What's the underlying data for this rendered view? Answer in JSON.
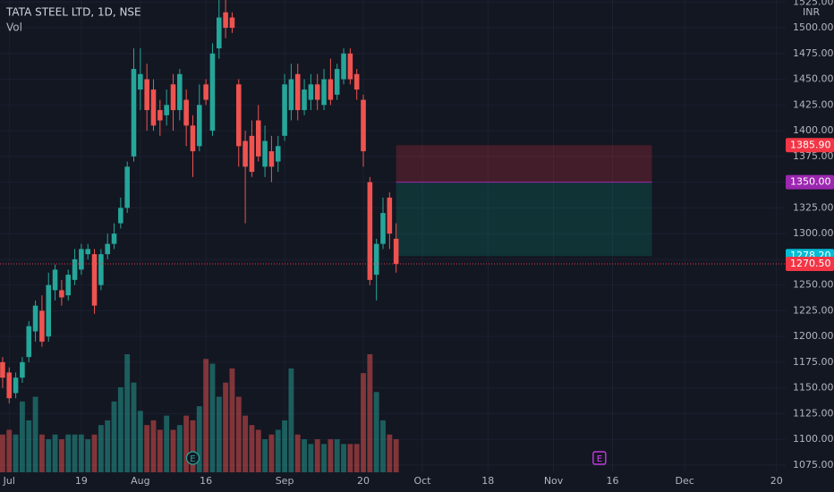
{
  "chart_data": {
    "type": "candlestick",
    "title": "TATA STEEL LTD, 1D, NSE",
    "subtitle": "Vol",
    "currency": "INR",
    "up_color": "#26a69a",
    "down_color": "#ef5350",
    "x": [
      0,
      1,
      2,
      3,
      4,
      5,
      6,
      7,
      8,
      9,
      10,
      11,
      12,
      13,
      14,
      15,
      16,
      17,
      18,
      19,
      20,
      21,
      22,
      23,
      24,
      25,
      26,
      27,
      28,
      29,
      30,
      31,
      32,
      33,
      34,
      35,
      36,
      37,
      38,
      39,
      40,
      41,
      42,
      43,
      44,
      45,
      46,
      47,
      48,
      49,
      50,
      51,
      52,
      53,
      54,
      55,
      56,
      57,
      58,
      59,
      60
    ],
    "open": [
      1175,
      1165,
      1145,
      1160,
      1180,
      1205,
      1225,
      1200,
      1245,
      1245,
      1240,
      1255,
      1265,
      1280,
      1280,
      1250,
      1280,
      1290,
      1310,
      1325,
      1375,
      1440,
      1450,
      1440,
      1420,
      1415,
      1445,
      1420,
      1430,
      1405,
      1385,
      1445,
      1400,
      1480,
      1515,
      1510,
      1445,
      1390,
      1395,
      1410,
      1365,
      1380,
      1370,
      1395,
      1420,
      1455,
      1420,
      1430,
      1445,
      1425,
      1450,
      1435,
      1450,
      1475,
      1455,
      1430,
      1350,
      1260,
      1290,
      1335,
      1295
    ],
    "high": [
      1180,
      1170,
      1165,
      1180,
      1215,
      1235,
      1240,
      1262,
      1270,
      1255,
      1265,
      1285,
      1290,
      1290,
      1285,
      1285,
      1300,
      1310,
      1335,
      1370,
      1480,
      1480,
      1465,
      1450,
      1430,
      1440,
      1455,
      1460,
      1440,
      1415,
      1445,
      1450,
      1485,
      1535,
      1527,
      1515,
      1450,
      1400,
      1410,
      1425,
      1405,
      1395,
      1395,
      1455,
      1465,
      1465,
      1450,
      1455,
      1455,
      1460,
      1470,
      1465,
      1480,
      1480,
      1460,
      1435,
      1355,
      1295,
      1335,
      1340,
      1310
    ],
    "low": [
      1150,
      1135,
      1140,
      1155,
      1175,
      1195,
      1190,
      1195,
      1235,
      1230,
      1235,
      1250,
      1260,
      1275,
      1222,
      1245,
      1275,
      1285,
      1305,
      1320,
      1370,
      1420,
      1400,
      1400,
      1395,
      1405,
      1400,
      1410,
      1385,
      1355,
      1380,
      1425,
      1395,
      1470,
      1490,
      1495,
      1365,
      1310,
      1355,
      1370,
      1355,
      1350,
      1360,
      1390,
      1410,
      1410,
      1415,
      1420,
      1420,
      1420,
      1425,
      1430,
      1445,
      1445,
      1430,
      1365,
      1250,
      1235,
      1285,
      1285,
      1262
    ],
    "close": [
      1160,
      1140,
      1160,
      1175,
      1210,
      1230,
      1195,
      1250,
      1265,
      1238,
      1260,
      1275,
      1285,
      1285,
      1230,
      1280,
      1290,
      1300,
      1325,
      1365,
      1460,
      1455,
      1420,
      1405,
      1410,
      1425,
      1420,
      1455,
      1405,
      1380,
      1425,
      1430,
      1475,
      1510,
      1500,
      1500,
      1385,
      1365,
      1360,
      1375,
      1390,
      1365,
      1385,
      1445,
      1450,
      1420,
      1440,
      1445,
      1430,
      1450,
      1430,
      1460,
      1475,
      1450,
      1440,
      1380,
      1255,
      1290,
      1320,
      1300,
      1270.5
    ],
    "volume": [
      8,
      9,
      8,
      15,
      11,
      16,
      8,
      7,
      8,
      7,
      8,
      8,
      8,
      7,
      8,
      10,
      11,
      15,
      18,
      25,
      19,
      13,
      10,
      11,
      9,
      12,
      9,
      10,
      12,
      11,
      14,
      24,
      23,
      16,
      19,
      22,
      16,
      12,
      10,
      9,
      7,
      8,
      9,
      11,
      22,
      8,
      7,
      6,
      7,
      6,
      7,
      7,
      6,
      6,
      6,
      21,
      25,
      17,
      11,
      8,
      7
    ],
    "vlim": [
      0,
      100
    ],
    "xlim": [
      -0.4,
      119.4
    ],
    "ylim": [
      1068,
      1527
    ],
    "xticks": [
      {
        "value": 1,
        "label": "Jul"
      },
      {
        "value": 12,
        "label": "19"
      },
      {
        "value": 21,
        "label": "Aug"
      },
      {
        "value": 31,
        "label": "16"
      },
      {
        "value": 43,
        "label": "Sep"
      },
      {
        "value": 55,
        "label": "20"
      },
      {
        "value": 64,
        "label": "Oct"
      },
      {
        "value": 74,
        "label": "18"
      },
      {
        "value": 84,
        "label": "Nov"
      },
      {
        "value": 93,
        "label": "16"
      },
      {
        "value": 104,
        "label": "Dec"
      },
      {
        "value": 118,
        "label": "20"
      }
    ],
    "yticks": [
      {
        "value": 1075,
        "label": "1075.00"
      },
      {
        "value": 1100,
        "label": "1100.00"
      },
      {
        "value": 1125,
        "label": "1125.00"
      },
      {
        "value": 1150,
        "label": "1150.00"
      },
      {
        "value": 1175,
        "label": "1175.00"
      },
      {
        "value": 1200,
        "label": "1200.00"
      },
      {
        "value": 1225,
        "label": "1225.00"
      },
      {
        "value": 1250,
        "label": "1250.00"
      },
      {
        "value": 1275,
        "label": "1275.00"
      },
      {
        "value": 1300,
        "label": "1300.00"
      },
      {
        "value": 1325,
        "label": "1325.00"
      },
      {
        "value": 1350,
        "label": "1350.00"
      },
      {
        "value": 1375,
        "label": "1375.00"
      },
      {
        "value": 1400,
        "label": "1400.00"
      },
      {
        "value": 1425,
        "label": "1425.00"
      },
      {
        "value": 1450,
        "label": "1450.00"
      },
      {
        "value": 1475,
        "label": "1475.00"
      },
      {
        "value": 1500,
        "label": "1500.00"
      },
      {
        "value": 1525,
        "label": "1525.00"
      }
    ],
    "grid": true,
    "position": {
      "start": 60,
      "end": 99,
      "upper": 1385.9,
      "entry": 1350,
      "lower": 1278.2
    },
    "price_labels": [
      {
        "value": 1385.9,
        "label": "1385.90",
        "color": "#f23645"
      },
      {
        "value": 1350,
        "label": "1350.00",
        "color": "#9c27b0"
      },
      {
        "value": 1278.2,
        "label": "1278.20",
        "color": "#00bcd4"
      },
      {
        "value": 1270.5,
        "label": "1270.50",
        "color": "#f23645",
        "dotted": true
      }
    ],
    "events": [
      {
        "x": 29,
        "label": "E",
        "color": "#26a69a"
      },
      {
        "x": 91,
        "label": "E",
        "color": "#e040fb"
      }
    ]
  }
}
